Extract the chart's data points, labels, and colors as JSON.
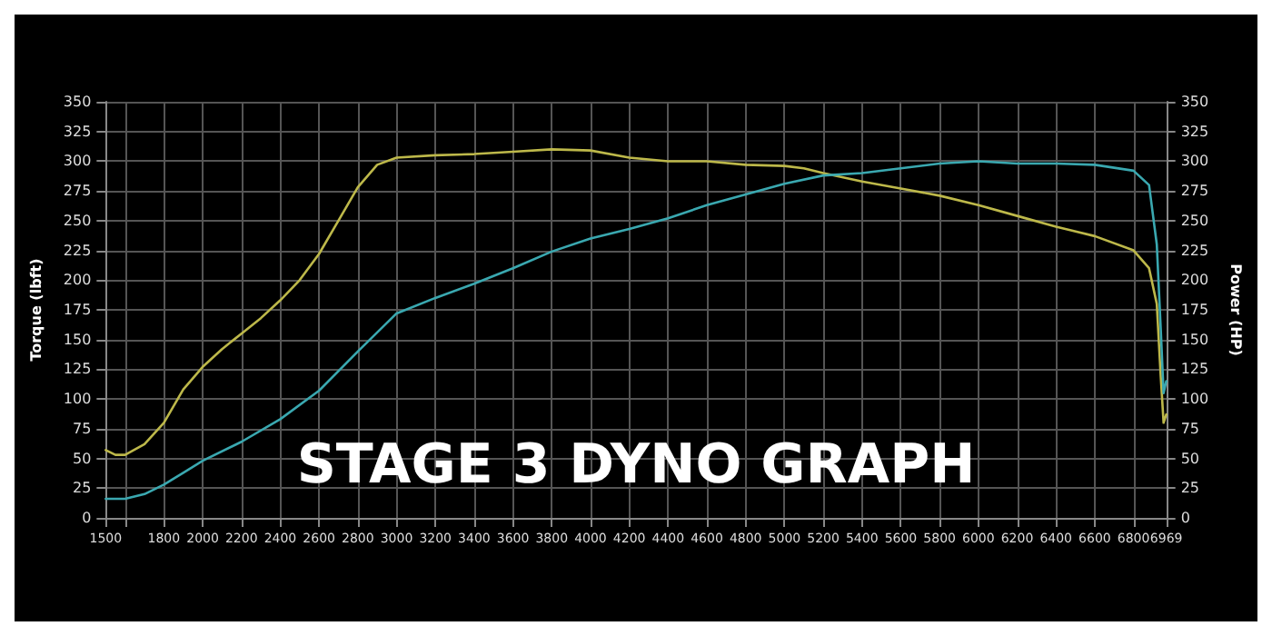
{
  "chart_data": {
    "type": "line",
    "title": "STAGE 3 DYNO GRAPH",
    "ylabel": "Torque (lbft)",
    "y2label": "Power (HP)",
    "xlim": [
      1500,
      6969
    ],
    "xticks": [
      1500,
      {
        "value": 1600,
        "label": null
      },
      1800,
      2000,
      2200,
      2400,
      2600,
      2800,
      3000,
      3200,
      3400,
      3600,
      3800,
      4000,
      4200,
      4400,
      4600,
      4800,
      5000,
      5200,
      5400,
      5600,
      5800,
      6000,
      6200,
      6400,
      6600,
      6800,
      6969
    ],
    "ylim": [
      0,
      350
    ],
    "yticks": [
      0,
      25,
      50,
      75,
      100,
      125,
      150,
      175,
      200,
      225,
      250,
      275,
      300,
      325,
      350
    ],
    "y2lim": [
      0,
      350
    ],
    "y2ticks": [
      0,
      25,
      50,
      75,
      100,
      125,
      150,
      175,
      200,
      225,
      250,
      275,
      300,
      325,
      350
    ],
    "grid": true,
    "marker": "none",
    "line_style": "solid",
    "series": [
      {
        "color": "#bdb84a",
        "x": [
          1500,
          1550,
          1600,
          1700,
          1800,
          1900,
          2000,
          2100,
          2200,
          2300,
          2400,
          2500,
          2600,
          2700,
          2800,
          2900,
          3000,
          3200,
          3400,
          3600,
          3800,
          4000,
          4200,
          4400,
          4600,
          4800,
          5000,
          5100,
          5200,
          5400,
          5600,
          5800,
          6000,
          6200,
          6400,
          6600,
          6800,
          6880,
          6920,
          6940,
          6955,
          6969
        ],
        "values": [
          57,
          53,
          53,
          62,
          80,
          108,
          127,
          142,
          155,
          168,
          183,
          200,
          222,
          250,
          278,
          297,
          303,
          305,
          306,
          308,
          310,
          309,
          303,
          300,
          300,
          297,
          296,
          294,
          290,
          283,
          277,
          271,
          263,
          254,
          245,
          237,
          225,
          210,
          180,
          120,
          80,
          87
        ]
      },
      {
        "color": "#3aa8b0",
        "axis": "y2",
        "x": [
          1500,
          1600,
          1700,
          1800,
          1900,
          2000,
          2200,
          2400,
          2600,
          2800,
          3000,
          3200,
          3400,
          3600,
          3800,
          4000,
          4200,
          4400,
          4600,
          4800,
          5000,
          5200,
          5400,
          5600,
          5800,
          6000,
          6200,
          6400,
          6600,
          6800,
          6880,
          6920,
          6940,
          6955,
          6969
        ],
        "values": [
          16,
          16,
          20,
          28,
          38,
          48,
          64,
          83,
          107,
          140,
          172,
          185,
          197,
          210,
          224,
          235,
          243,
          252,
          263,
          272,
          281,
          288,
          290,
          294,
          298,
          300,
          298,
          298,
          297,
          292,
          280,
          230,
          160,
          105,
          115
        ]
      }
    ]
  }
}
